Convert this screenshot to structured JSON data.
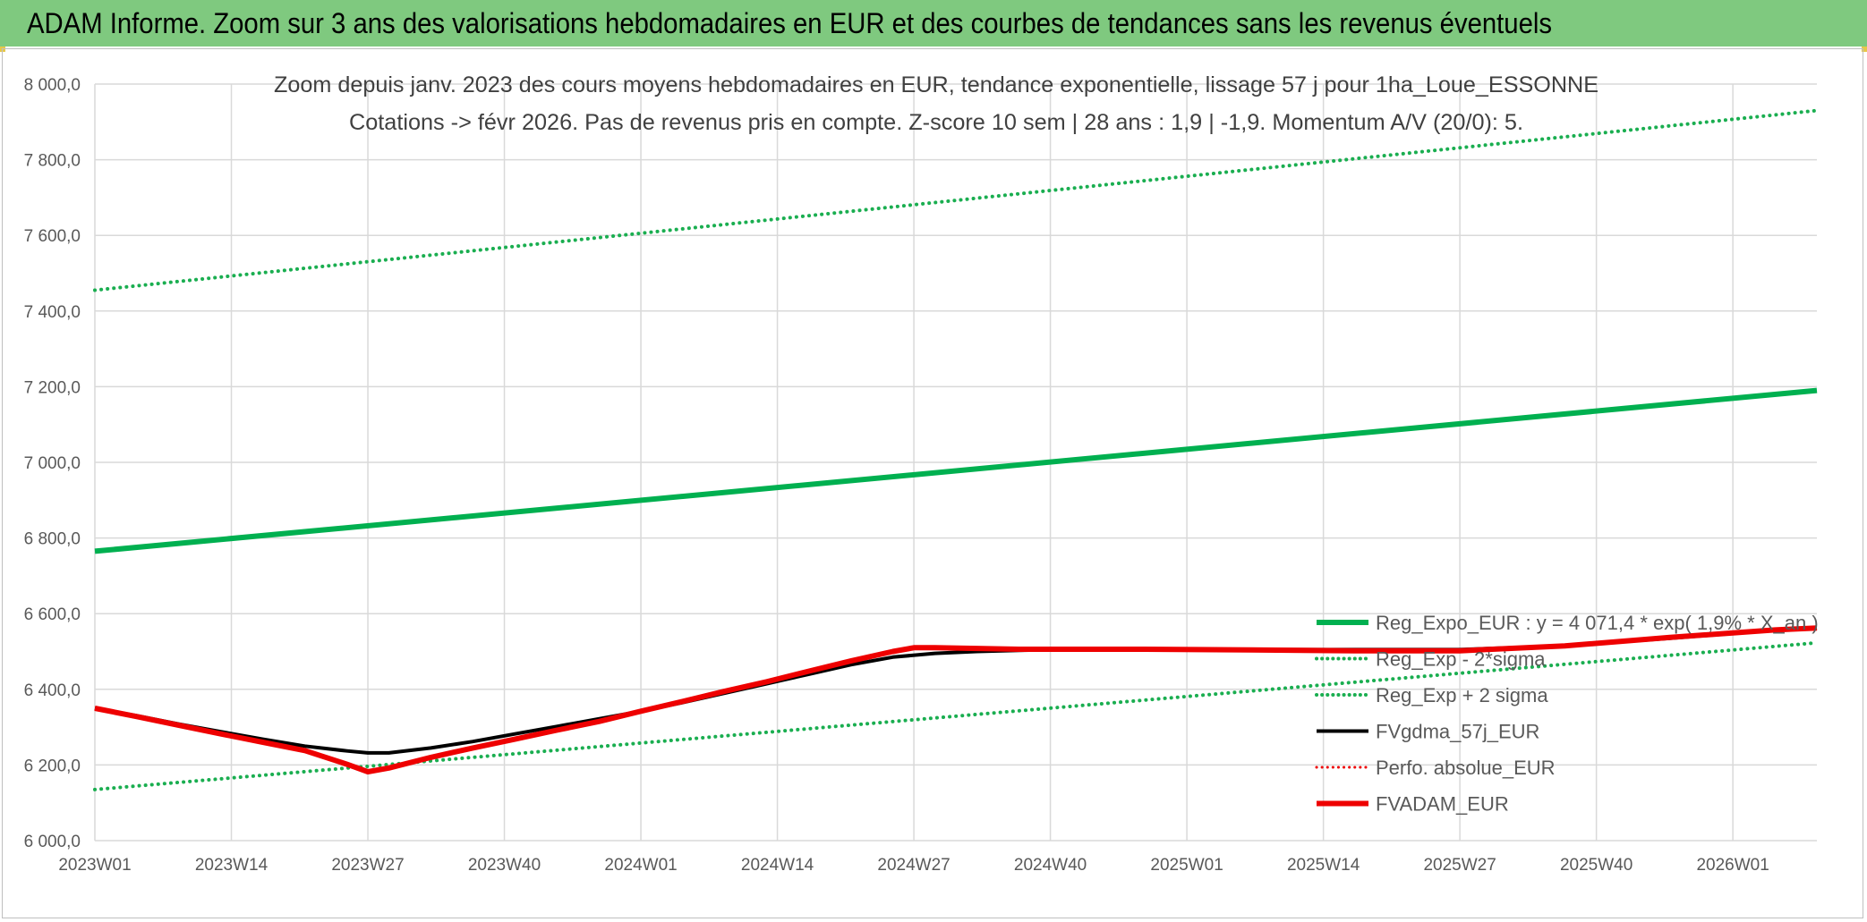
{
  "banner": {
    "title": "ADAM Informe. Zoom sur 3 ans des valorisations hebdomadaires en EUR et des courbes de tendances sans les revenus éventuels"
  },
  "colors": {
    "banner_bg": "#7fc97f",
    "trend_green": "#00b050",
    "band_green": "#1aae50",
    "fv_black": "#000000",
    "fv_red": "#ee0000",
    "grid": "#d9d9d9"
  },
  "chart_data": {
    "type": "line",
    "title_lines": [
      "Zoom depuis janv. 2023 des cours moyens hebdomadaires en EUR, tendance exponentielle, lissage 57 j pour 1ha_Loue_ESSONNE",
      "Cotations -> févr 2026. Pas de revenus pris en compte. Z-score 10 sem | 28 ans : 1,9 | -1,9. Momentum A/V (20/0): 5."
    ],
    "x_unit": "week index from 2023W01 (0 = 2023W01)",
    "xlim": [
      0,
      164
    ],
    "x_tick_positions": [
      0,
      13,
      26,
      39,
      52,
      65,
      78,
      91,
      104,
      117,
      130,
      143,
      156
    ],
    "x_tick_labels": [
      "2023W01",
      "2023W14",
      "2023W27",
      "2023W40",
      "2024W01",
      "2024W14",
      "2024W27",
      "2024W40",
      "2025W01",
      "2025W14",
      "2025W27",
      "2025W40",
      "2026W01"
    ],
    "ylim": [
      6000,
      8000
    ],
    "y_ticks": [
      6000,
      6200,
      6400,
      6600,
      6800,
      7000,
      7200,
      7400,
      7600,
      7800,
      8000
    ],
    "y_tick_labels": [
      "6 000,0",
      "6 200,0",
      "6 400,0",
      "6 600,0",
      "6 800,0",
      "7 000,0",
      "7 200,0",
      "7 400,0",
      "7 600,0",
      "7 800,0",
      "8 000,0"
    ],
    "grid": true,
    "legend_position": "bottom-right",
    "series": [
      {
        "name": "Reg_Expo_EUR : y = 4 071,4 * exp( 1,9% *  X_an )",
        "color": "#00b050",
        "style": "solid",
        "width": 6,
        "x": [
          0,
          164
        ],
        "y": [
          6765,
          7190
        ]
      },
      {
        "name": "Reg_Exp - 2*sigma",
        "color": "#1aae50",
        "style": "dotted",
        "width": 4,
        "x": [
          0,
          164
        ],
        "y": [
          6135,
          6523
        ]
      },
      {
        "name": "Reg_Exp + 2 sigma",
        "color": "#1aae50",
        "style": "dotted",
        "width": 4,
        "x": [
          0,
          164
        ],
        "y": [
          7455,
          7930
        ]
      },
      {
        "name": "FVgdma_57j_EUR",
        "color": "#000000",
        "style": "solid",
        "width": 4,
        "x": [
          0,
          4,
          8,
          12,
          16,
          20,
          24,
          26,
          28,
          32,
          36,
          40,
          44,
          48,
          52,
          56,
          60,
          64,
          68,
          72,
          76,
          80,
          84,
          88,
          92,
          100,
          110,
          120,
          130,
          140,
          150,
          160,
          164
        ],
        "y": [
          6350,
          6330,
          6308,
          6288,
          6268,
          6250,
          6237,
          6232,
          6232,
          6245,
          6262,
          6282,
          6302,
          6322,
          6342,
          6365,
          6390,
          6415,
          6440,
          6465,
          6485,
          6495,
          6500,
          6503,
          6505,
          6505,
          6505,
          6505,
          6505,
          6515,
          6535,
          6556,
          6562
        ]
      },
      {
        "name": "Perfo. absolue_EUR",
        "color": "#ee0000",
        "style": "dotted",
        "width": 3,
        "x": [],
        "y": []
      },
      {
        "name": "FVADAM_EUR",
        "color": "#ee0000",
        "style": "solid",
        "width": 6,
        "x": [
          0,
          4,
          8,
          12,
          16,
          20,
          24,
          26,
          28,
          32,
          36,
          40,
          44,
          48,
          52,
          56,
          60,
          64,
          68,
          72,
          76,
          78,
          80,
          84,
          88,
          92,
          100,
          110,
          120,
          130,
          140,
          150,
          160,
          164
        ],
        "y": [
          6350,
          6328,
          6305,
          6282,
          6260,
          6238,
          6202,
          6182,
          6192,
          6220,
          6245,
          6268,
          6292,
          6315,
          6342,
          6368,
          6395,
          6420,
          6448,
          6475,
          6500,
          6510,
          6510,
          6508,
          6506,
          6506,
          6506,
          6504,
          6502,
          6502,
          6515,
          6537,
          6557,
          6562
        ]
      }
    ]
  }
}
